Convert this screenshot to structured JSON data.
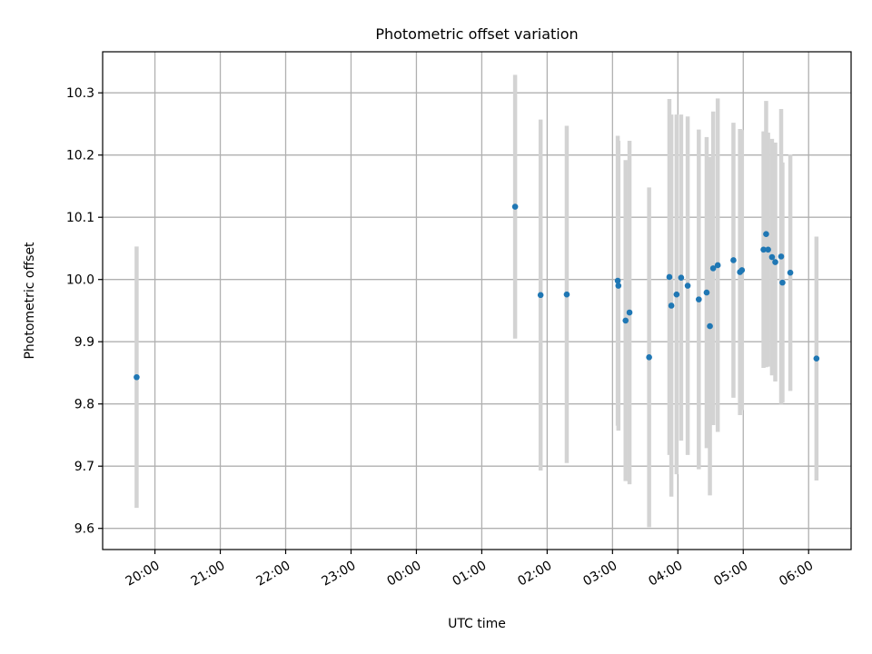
{
  "chart_data": {
    "type": "scatter",
    "title": "Photometric offset variation",
    "xlabel": "UTC time",
    "ylabel": "Photometric offset",
    "x_ticks": [
      "20:00",
      "21:00",
      "22:00",
      "23:00",
      "00:00",
      "01:00",
      "02:00",
      "03:00",
      "04:00",
      "05:00",
      "06:00"
    ],
    "x_tick_hours": [
      20,
      21,
      22,
      23,
      24,
      25,
      26,
      27,
      28,
      29,
      30
    ],
    "xlim_hours": [
      19.2,
      30.65
    ],
    "y_ticks": [
      "9.6",
      "9.7",
      "9.8",
      "9.9",
      "10.0",
      "10.1",
      "10.2",
      "10.3"
    ],
    "ylim": [
      9.566,
      10.366
    ],
    "grid": true,
    "colors": {
      "point": "#1f77b4",
      "errorbar": "#d3d3d3",
      "grid": "#b0b0b0"
    },
    "series": [
      {
        "points": [
          {
            "t": 19.72,
            "y": 9.843,
            "err": 0.21
          },
          {
            "t": 25.51,
            "y": 10.117,
            "err": 0.212
          },
          {
            "t": 25.9,
            "y": 9.975,
            "err": 0.282
          },
          {
            "t": 26.3,
            "y": 9.976,
            "err": 0.271
          },
          {
            "t": 27.08,
            "y": 9.998,
            "err": 0.233
          },
          {
            "t": 27.09,
            "y": 9.99,
            "err": 0.233
          },
          {
            "t": 27.2,
            "y": 9.934,
            "err": 0.258
          },
          {
            "t": 27.26,
            "y": 9.947,
            "err": 0.276
          },
          {
            "t": 27.56,
            "y": 9.875,
            "err": 0.273
          },
          {
            "t": 27.87,
            "y": 10.004,
            "err": 0.286
          },
          {
            "t": 27.9,
            "y": 9.958,
            "err": 0.307
          },
          {
            "t": 27.98,
            "y": 9.976,
            "err": 0.289
          },
          {
            "t": 28.05,
            "y": 10.003,
            "err": 0.262
          },
          {
            "t": 28.15,
            "y": 9.99,
            "err": 0.272
          },
          {
            "t": 28.32,
            "y": 9.968,
            "err": 0.273
          },
          {
            "t": 28.44,
            "y": 9.979,
            "err": 0.25
          },
          {
            "t": 28.49,
            "y": 9.925,
            "err": 0.272
          },
          {
            "t": 28.54,
            "y": 10.018,
            "err": 0.252
          },
          {
            "t": 28.61,
            "y": 10.023,
            "err": 0.268
          },
          {
            "t": 28.85,
            "y": 10.031,
            "err": 0.221
          },
          {
            "t": 28.95,
            "y": 10.012,
            "err": 0.23
          },
          {
            "t": 28.98,
            "y": 10.015,
            "err": 0.225
          },
          {
            "t": 29.31,
            "y": 10.048,
            "err": 0.19
          },
          {
            "t": 29.35,
            "y": 10.073,
            "err": 0.214
          },
          {
            "t": 29.38,
            "y": 10.048,
            "err": 0.188
          },
          {
            "t": 29.44,
            "y": 10.036,
            "err": 0.19
          },
          {
            "t": 29.49,
            "y": 10.028,
            "err": 0.192
          },
          {
            "t": 29.58,
            "y": 10.037,
            "err": 0.237
          },
          {
            "t": 29.6,
            "y": 9.995,
            "err": 0.193
          },
          {
            "t": 29.72,
            "y": 10.011,
            "err": 0.19
          },
          {
            "t": 30.12,
            "y": 9.873,
            "err": 0.196
          }
        ]
      }
    ]
  }
}
